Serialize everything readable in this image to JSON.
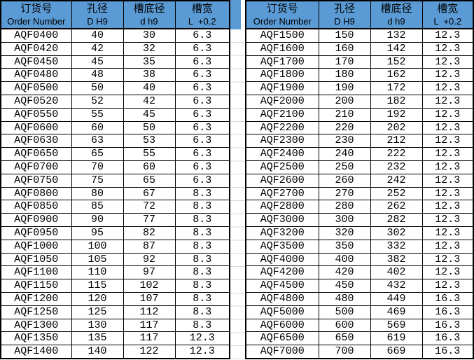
{
  "columns": [
    {
      "zh": "订货号",
      "en": "Order Number"
    },
    {
      "zh": "孔径",
      "en": "D H9"
    },
    {
      "zh": "槽底径",
      "en": "d h9"
    },
    {
      "zh": "槽宽",
      "en": "L  +0.2"
    }
  ],
  "colors": {
    "header_bg": "#5b9bd5",
    "border": "#000000",
    "gridline": "#d9d9d9"
  },
  "tables": [
    {
      "name": "left",
      "rows": [
        [
          "AQF0400",
          "40",
          "30",
          "6.3"
        ],
        [
          "AQF0420",
          "42",
          "32",
          "6.3"
        ],
        [
          "AQF0450",
          "45",
          "35",
          "6.3"
        ],
        [
          "AQF0480",
          "48",
          "38",
          "6.3"
        ],
        [
          "AQF0500",
          "50",
          "40",
          "6.3"
        ],
        [
          "AQF0520",
          "52",
          "42",
          "6.3"
        ],
        [
          "AQF0550",
          "55",
          "45",
          "6.3"
        ],
        [
          "AQF0600",
          "60",
          "50",
          "6.3"
        ],
        [
          "AQF0630",
          "63",
          "53",
          "6.3"
        ],
        [
          "AQF0650",
          "65",
          "55",
          "6.3"
        ],
        [
          "AQF0700",
          "70",
          "60",
          "6.3"
        ],
        [
          "AQF0750",
          "75",
          "65",
          "6.3"
        ],
        [
          "AQF0800",
          "80",
          "67",
          "8.3"
        ],
        [
          "AQF0850",
          "85",
          "72",
          "8.3"
        ],
        [
          "AQF0900",
          "90",
          "77",
          "8.3"
        ],
        [
          "AQF0950",
          "95",
          "82",
          "8.3"
        ],
        [
          "AQF1000",
          "100",
          "87",
          "8.3"
        ],
        [
          "AQF1050",
          "105",
          "92",
          "8.3"
        ],
        [
          "AQF1100",
          "110",
          "97",
          "8.3"
        ],
        [
          "AQF1150",
          "115",
          "102",
          "8.3"
        ],
        [
          "AQF1200",
          "120",
          "107",
          "8.3"
        ],
        [
          "AQF1250",
          "125",
          "112",
          "8.3"
        ],
        [
          "AQF1300",
          "130",
          "117",
          "8.3"
        ],
        [
          "AQF1350",
          "135",
          "117",
          "12.3"
        ],
        [
          "AQF1400",
          "140",
          "122",
          "12.3"
        ]
      ]
    },
    {
      "name": "right",
      "rows": [
        [
          "AQF1500",
          "150",
          "132",
          "12.3"
        ],
        [
          "AQF1600",
          "160",
          "142",
          "12.3"
        ],
        [
          "AQF1700",
          "170",
          "152",
          "12.3"
        ],
        [
          "AQF1800",
          "180",
          "162",
          "12.3"
        ],
        [
          "AQF1900",
          "190",
          "172",
          "12.3"
        ],
        [
          "AQF2000",
          "200",
          "182",
          "12.3"
        ],
        [
          "AQF2100",
          "210",
          "192",
          "12.3"
        ],
        [
          "AQF2200",
          "220",
          "202",
          "12.3"
        ],
        [
          "AQF2300",
          "230",
          "212",
          "12.3"
        ],
        [
          "AQF2400",
          "240",
          "222",
          "12.3"
        ],
        [
          "AQF2500",
          "250",
          "232",
          "12.3"
        ],
        [
          "AQF2600",
          "260",
          "242",
          "12.3"
        ],
        [
          "AQF2700",
          "270",
          "252",
          "12.3"
        ],
        [
          "AQF2800",
          "280",
          "262",
          "12.3"
        ],
        [
          "AQF3000",
          "300",
          "282",
          "12.3"
        ],
        [
          "AQF3200",
          "320",
          "302",
          "12.3"
        ],
        [
          "AQF3500",
          "350",
          "332",
          "12.3"
        ],
        [
          "AQF4000",
          "400",
          "382",
          "12.3"
        ],
        [
          "AQF4200",
          "420",
          "402",
          "12.3"
        ],
        [
          "AQF4500",
          "450",
          "432",
          "12.3"
        ],
        [
          "AQF4800",
          "480",
          "449",
          "16.3"
        ],
        [
          "AQF5000",
          "500",
          "469",
          "16.3"
        ],
        [
          "AQF6000",
          "600",
          "569",
          "16.3"
        ],
        [
          "AQF6500",
          "650",
          "619",
          "16.3"
        ],
        [
          "AQF7000",
          "700",
          "669",
          "16.3"
        ]
      ]
    }
  ]
}
